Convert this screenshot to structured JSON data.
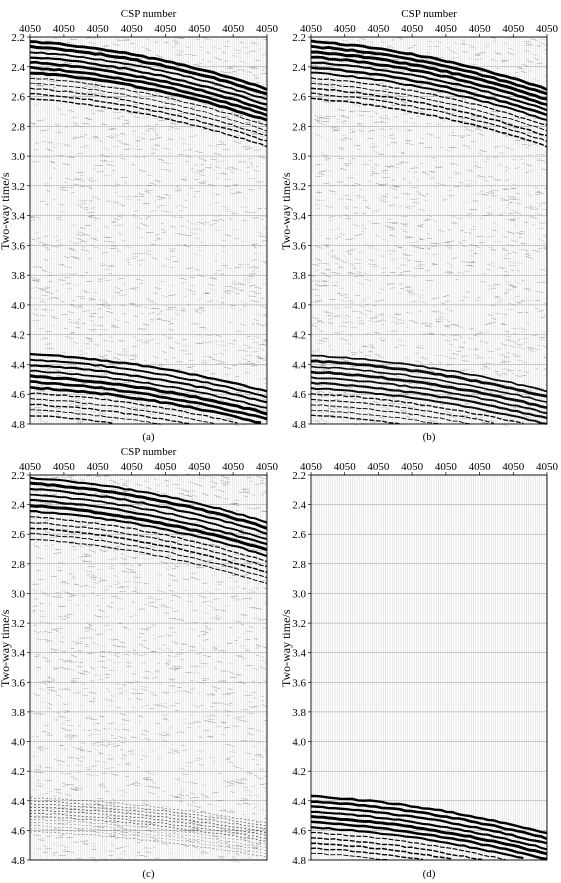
{
  "figure": {
    "panels": [
      {
        "id": "a",
        "caption": "(a)"
      },
      {
        "id": "b",
        "caption": "(b)"
      },
      {
        "id": "c",
        "caption": "(c)"
      },
      {
        "id": "d",
        "caption": "(d)"
      }
    ]
  },
  "chart_data": [
    {
      "type": "heatmap",
      "panel": "(a)",
      "title": "CSP number",
      "xlabel": "CSP number",
      "ylabel": "Two-way time/s",
      "x_tick_labels": [
        "4050",
        "4050",
        "4050",
        "4050",
        "4050",
        "4050",
        "4050",
        "4050"
      ],
      "y_ticks": [
        2.2,
        2.4,
        2.6,
        2.8,
        3.0,
        3.2,
        3.4,
        3.6,
        3.8,
        4.0,
        4.2,
        4.4,
        4.6,
        4.8
      ],
      "ylim": [
        2.2,
        4.8
      ],
      "y_inverted": true,
      "reflection_groups": [
        {
          "onset_left_s": 2.23,
          "onset_right_s": 2.55,
          "thickness_s": 0.42,
          "amplitude": 1.0
        },
        {
          "onset_left_s": 4.33,
          "onset_right_s": 4.58,
          "thickness_s": 0.45,
          "amplitude": 1.0
        }
      ],
      "background_noise": "strong"
    },
    {
      "type": "heatmap",
      "panel": "(b)",
      "title": "CSP number",
      "xlabel": "CSP number",
      "ylabel": "Two-way time/s",
      "x_tick_labels": [
        "4050",
        "4050",
        "4050",
        "4050",
        "4050",
        "4050",
        "4050",
        "4050"
      ],
      "y_ticks": [
        2.2,
        2.4,
        2.6,
        2.8,
        3.0,
        3.2,
        3.4,
        3.6,
        3.8,
        4.0,
        4.2,
        4.4,
        4.6,
        4.8
      ],
      "ylim": [
        2.2,
        4.8
      ],
      "y_inverted": true,
      "reflection_groups": [
        {
          "onset_left_s": 2.23,
          "onset_right_s": 2.55,
          "thickness_s": 0.42,
          "amplitude": 1.0
        },
        {
          "onset_left_s": 4.34,
          "onset_right_s": 4.58,
          "thickness_s": 0.44,
          "amplitude": 0.9
        }
      ],
      "background_noise": "strong"
    },
    {
      "type": "heatmap",
      "panel": "(c)",
      "title": "CSP number",
      "xlabel": "CSP number",
      "ylabel": "Two-way time/s",
      "x_tick_labels": [
        "4050",
        "4050",
        "4050",
        "4050",
        "4050",
        "4050",
        "4050",
        "4050"
      ],
      "y_ticks": [
        2.2,
        2.4,
        2.6,
        2.8,
        3.0,
        3.2,
        3.4,
        3.6,
        3.8,
        4.0,
        4.2,
        4.4,
        4.6,
        4.8
      ],
      "ylim": [
        2.2,
        4.8
      ],
      "y_inverted": true,
      "reflection_groups": [
        {
          "onset_left_s": 2.22,
          "onset_right_s": 2.52,
          "thickness_s": 0.45,
          "amplitude": 1.0
        },
        {
          "onset_left_s": 4.38,
          "onset_right_s": 4.55,
          "thickness_s": 0.25,
          "amplitude": 0.35
        }
      ],
      "background_noise": "strong"
    },
    {
      "type": "heatmap",
      "panel": "(d)",
      "title": "",
      "xlabel": "",
      "ylabel": "Two-way time/s",
      "x_tick_labels": [
        "4050",
        "4050",
        "4050",
        "4050",
        "4050",
        "4050",
        "4050",
        "4050"
      ],
      "y_ticks": [
        2.2,
        2.4,
        2.6,
        2.8,
        3.0,
        3.2,
        3.4,
        3.6,
        3.8,
        4.0,
        4.2,
        4.4,
        4.6,
        4.8
      ],
      "ylim": [
        2.2,
        4.8
      ],
      "y_inverted": true,
      "reflection_groups": [
        {
          "onset_left_s": 4.37,
          "onset_right_s": 4.62,
          "thickness_s": 0.42,
          "amplitude": 1.0
        }
      ],
      "background_noise": "none"
    }
  ]
}
